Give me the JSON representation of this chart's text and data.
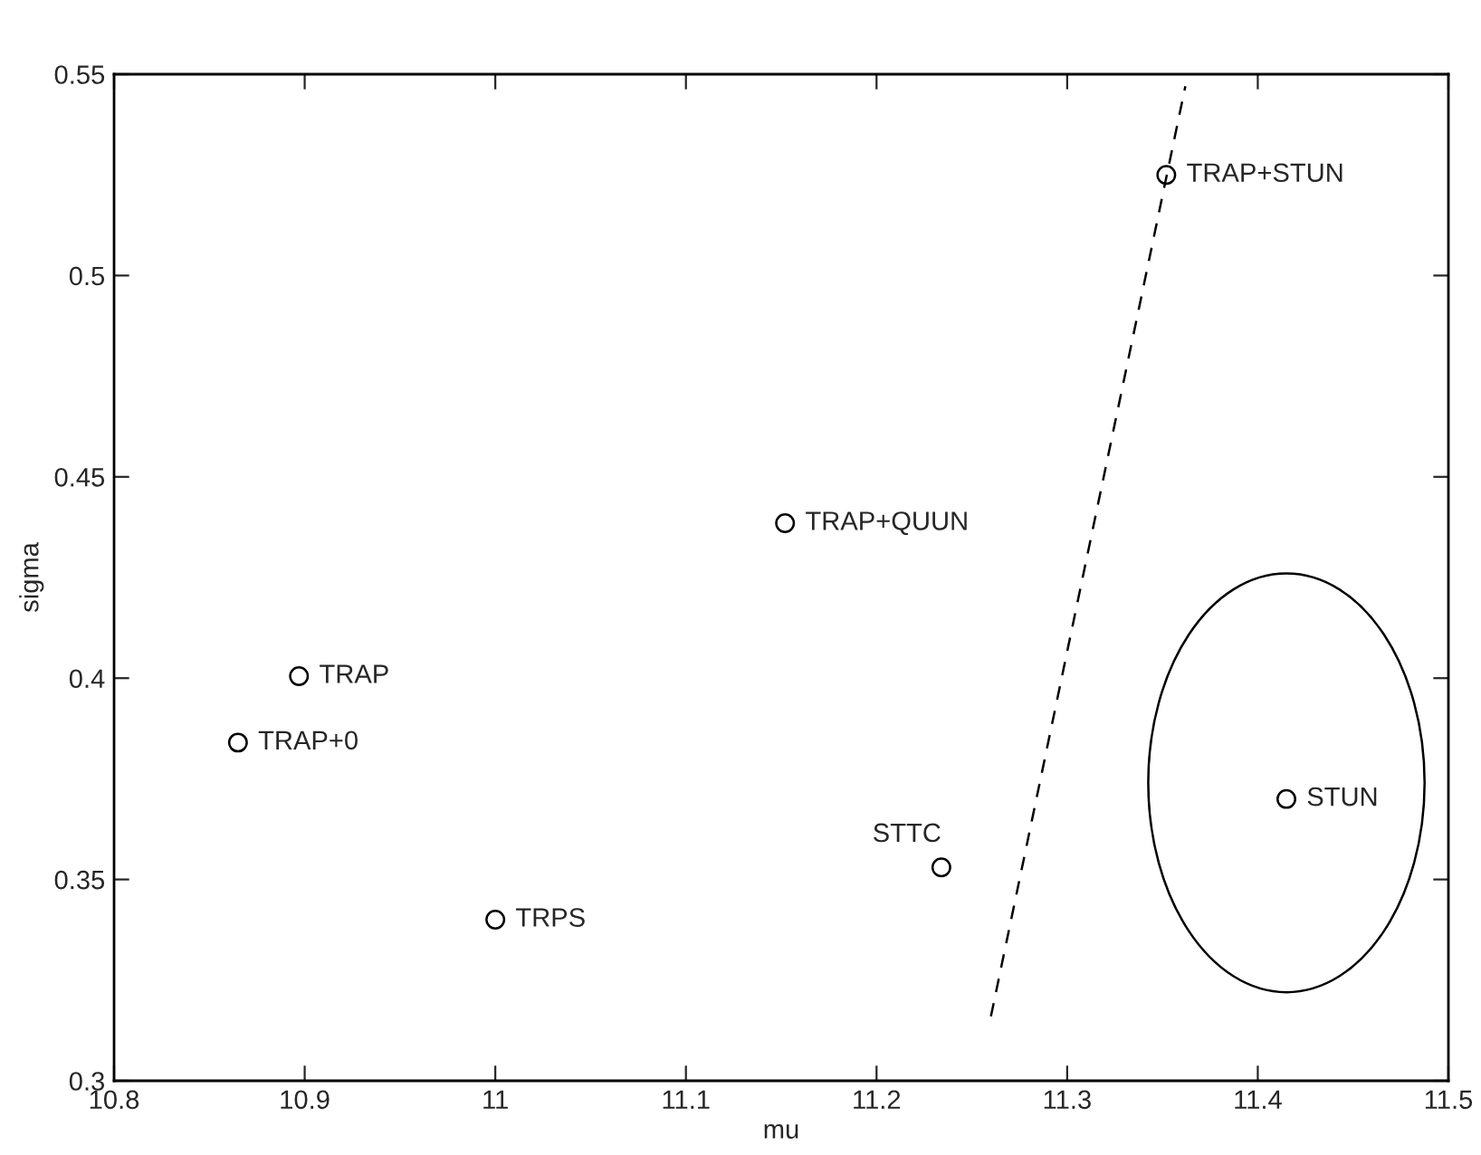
{
  "chart_data": {
    "type": "scatter",
    "xlabel": "mu",
    "ylabel": "sigma",
    "xlim": [
      10.8,
      11.5
    ],
    "ylim": [
      0.3,
      0.55
    ],
    "xticks": [
      10.8,
      10.9,
      11,
      11.1,
      11.2,
      11.3,
      11.4,
      11.5
    ],
    "yticks": [
      0.3,
      0.35,
      0.4,
      0.45,
      0.5,
      0.55
    ],
    "grid": false,
    "legend": false,
    "series": [
      {
        "type": "scatter",
        "marker": "circle",
        "color": "#000000",
        "x": [
          11.352,
          11.152,
          10.897,
          10.865,
          11.0,
          11.234,
          11.415
        ],
        "values": [
          0.525,
          0.4385,
          0.4005,
          0.384,
          0.34,
          0.353,
          0.37
        ]
      },
      {
        "type": "line",
        "line_style": "dashed",
        "color": "#000000",
        "x": [
          11.26,
          11.362
        ],
        "values": [
          0.316,
          0.547
        ]
      }
    ],
    "annotations": [
      {
        "text": "TRAP+STUN",
        "x": 11.352,
        "y": 0.525
      },
      {
        "text": "TRAP+QUUN",
        "x": 11.152,
        "y": 0.4385
      },
      {
        "text": "TRAP",
        "x": 10.897,
        "y": 0.4005
      },
      {
        "text": "TRAP+0",
        "x": 10.865,
        "y": 0.384
      },
      {
        "text": "TRPS",
        "x": 11.0,
        "y": 0.34
      },
      {
        "text": "STTC",
        "x": 11.234,
        "y": 0.353
      },
      {
        "text": "STUN",
        "x": 11.415,
        "y": 0.37
      }
    ]
  }
}
